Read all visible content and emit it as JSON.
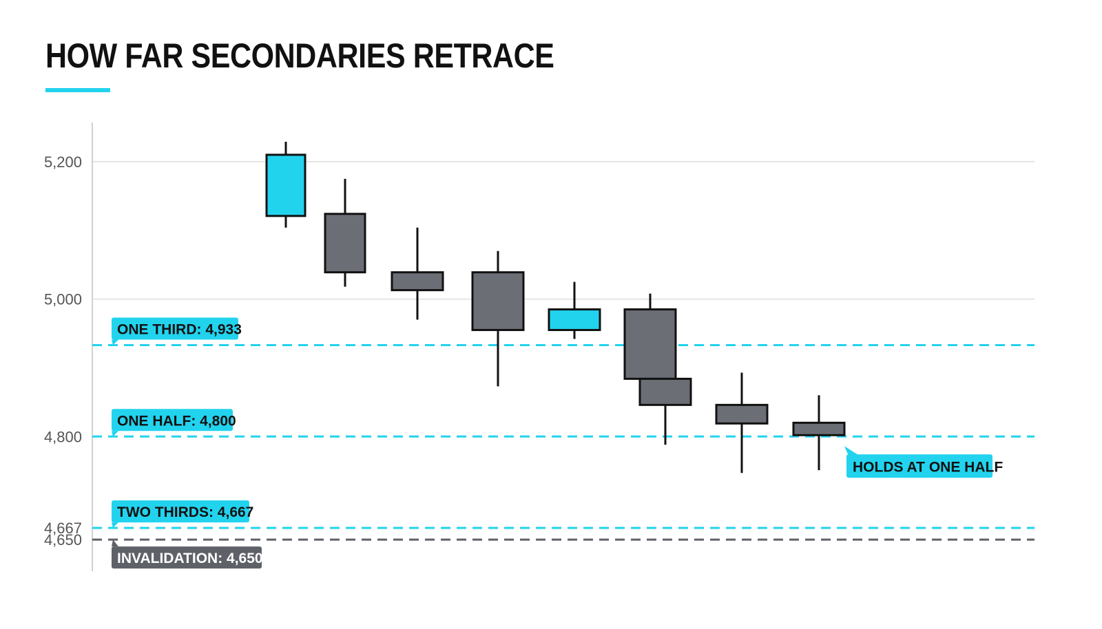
{
  "title": "HOW FAR SECONDARIES RETRACE",
  "colors": {
    "accent": "#22d3ee",
    "candle_gray": "#6b6e75",
    "outline": "#111111",
    "invalidation": "#5f6168",
    "grid": "#e5e5e5"
  },
  "chart_data": {
    "type": "candlestick",
    "title": "HOW FAR SECONDARIES RETRACE",
    "ylim": [
      4605,
      5255
    ],
    "y_ticks": [
      {
        "value": 5200,
        "label": "5,200"
      },
      {
        "value": 5000,
        "label": "5,000"
      },
      {
        "value": 4800,
        "label": "4,800"
      },
      {
        "value": 4667,
        "label": "4,667"
      },
      {
        "value": 4650,
        "label": "4,650"
      }
    ],
    "candles": [
      {
        "open": 5121,
        "high": 5229,
        "low": 5104,
        "close": 5210,
        "color": "cyan"
      },
      {
        "open": 5124,
        "high": 5175,
        "low": 5018,
        "close": 5039,
        "color": "gray"
      },
      {
        "open": 5039,
        "high": 5104,
        "low": 4970,
        "close": 5013,
        "color": "gray"
      },
      {
        "open": 5039,
        "high": 5070,
        "low": 4873,
        "close": 4955,
        "color": "gray"
      },
      {
        "open": 4955,
        "high": 5025,
        "low": 4942,
        "close": 4985,
        "color": "cyan"
      },
      {
        "open": 4985,
        "high": 5008,
        "low": 4885,
        "close": 4884,
        "color": "gray"
      },
      {
        "open": 4884,
        "high": 4885,
        "low": 4788,
        "close": 4846,
        "color": "gray"
      },
      {
        "open": 4846,
        "high": 4893,
        "low": 4747,
        "close": 4819,
        "color": "gray"
      },
      {
        "open": 4820,
        "high": 4860,
        "low": 4751,
        "close": 4802,
        "color": "gray"
      }
    ],
    "levels": [
      {
        "value": 4933,
        "label": "ONE THIRD: 4,933",
        "color": "cyan",
        "style": "dashed"
      },
      {
        "value": 4800,
        "label": "ONE HALF: 4,800",
        "color": "cyan",
        "style": "dashed"
      },
      {
        "value": 4667,
        "label": "TWO THIRDS: 4,667",
        "color": "cyan",
        "style": "dashed"
      },
      {
        "value": 4650,
        "label": "INVALIDATION: 4,650",
        "color": "gray",
        "style": "dashed"
      }
    ],
    "annotation": "HOLDS AT ONE HALF",
    "grid": true
  }
}
